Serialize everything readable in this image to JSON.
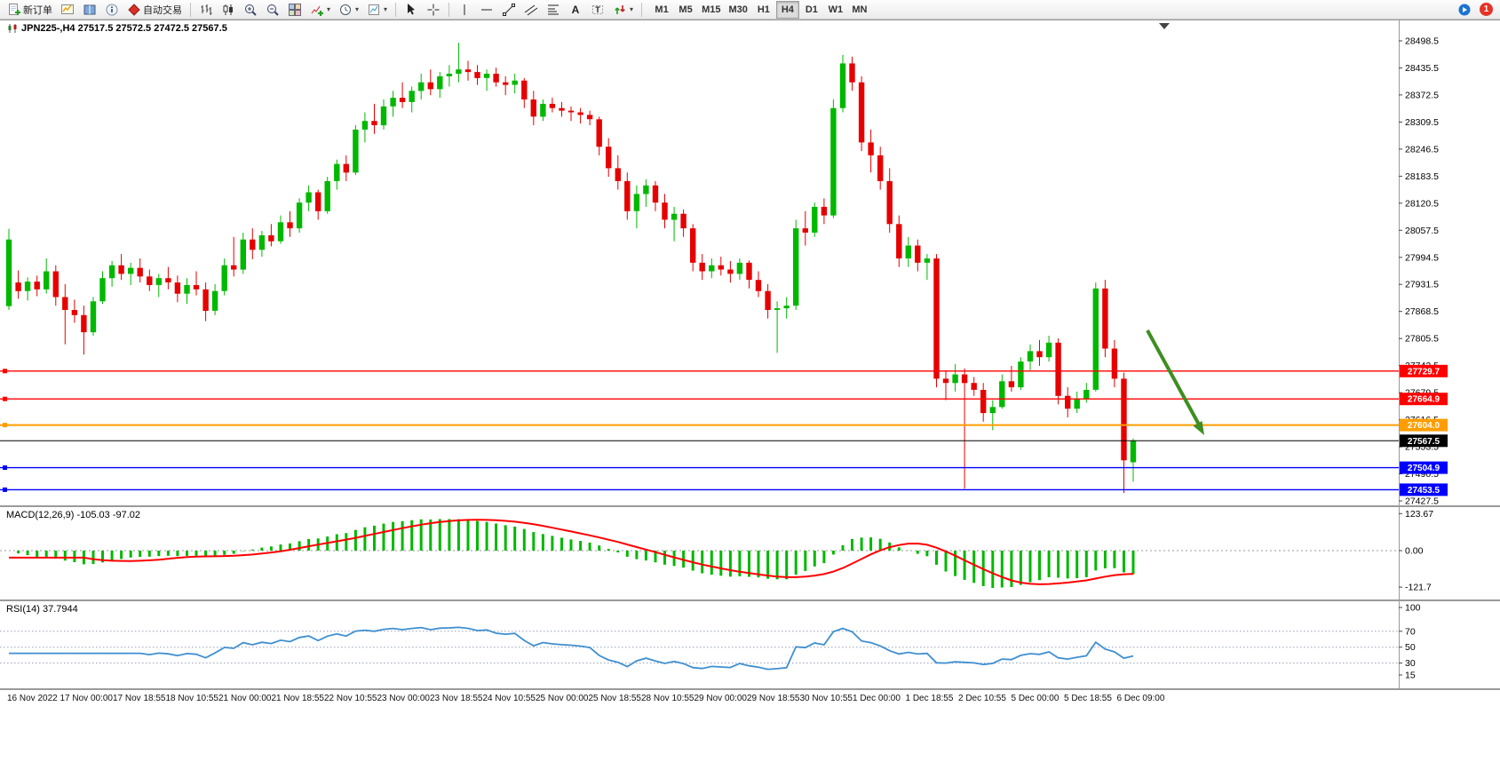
{
  "toolbar": {
    "new_order_label": "新订单",
    "auto_trading_label": "自动交易",
    "timeframes": [
      "M1",
      "M5",
      "M15",
      "M30",
      "H1",
      "H4",
      "D1",
      "W1",
      "MN"
    ],
    "active_timeframe": "H4",
    "notification_count": "1"
  },
  "chart": {
    "title": "JPN225-,H4 27517.5 27572.5 27472.5 27567.5",
    "price_axis": {
      "labels": [
        "28498.5",
        "28435.5",
        "28372.5",
        "28309.5",
        "28246.5",
        "28183.5",
        "28120.5",
        "28057.5",
        "27994.5",
        "27931.5",
        "27868.5",
        "27805.5",
        "27742.5",
        "27679.5",
        "27616.5",
        "27553.5",
        "27490.5",
        "27427.5"
      ]
    },
    "levels": [
      {
        "label": "27729.7",
        "price": 27729.7,
        "color": "#ff0000",
        "width": 1.4
      },
      {
        "label": "27664.9",
        "price": 27664.9,
        "color": "#ff0000",
        "width": 1.4
      },
      {
        "label": "27604.0",
        "price": 27604.0,
        "color": "#ff9d00",
        "width": 2
      },
      {
        "label": "27567.5",
        "price": 27567.5,
        "color": "#000000",
        "width": 1,
        "current": true
      },
      {
        "label": "27504.9",
        "price": 27504.9,
        "color": "#0000ff",
        "width": 1.4
      },
      {
        "label": "27453.5",
        "price": 27453.5,
        "color": "#0000ff",
        "width": 1.4
      }
    ],
    "colors": {
      "up": "#00b800",
      "down": "#e60000"
    },
    "arrow_color": "#3e8e22"
  },
  "macd": {
    "label": "MACD(12,26,9) -105.03 -97.02",
    "axis": [
      "123.67",
      "0.00",
      "-121.7"
    ],
    "histogram_color": "#00b800",
    "signal_color": "#ff0000"
  },
  "rsi": {
    "label": "RSI(14) 37.7944",
    "period": 14,
    "axis": [
      "100",
      "70",
      "50",
      "30",
      "15"
    ],
    "levels": [
      70,
      50,
      30
    ],
    "line_color": "#3f8fd0"
  },
  "time_axis": {
    "labels": [
      "16 Nov 2022",
      "17 Nov 00:00",
      "17 Nov 18:55",
      "18 Nov 10:55",
      "21 Nov 00:00",
      "21 Nov 18:55",
      "22 Nov 10:55",
      "23 Nov 00:00",
      "23 Nov 18:55",
      "24 Nov 10:55",
      "25 Nov 00:00",
      "25 Nov 18:55",
      "28 Nov 10:55",
      "29 Nov 00:00",
      "29 Nov 18:55",
      "30 Nov 10:55",
      "1 Dec 00:00",
      "1 Dec 18:55",
      "2 Dec 10:55",
      "5 Dec 00:00",
      "5 Dec 18:55",
      "6 Dec 09:00"
    ]
  },
  "chart_data": {
    "type": "candlestick",
    "symbol": "JPN225-",
    "timeframe": "H4",
    "ohlc_current": {
      "open": 27517.5,
      "high": 27572.5,
      "low": 27472.5,
      "close": 27567.5
    },
    "ylim": [
      27427.5,
      28498.5
    ],
    "candles": [
      [
        27881,
        28061,
        27872,
        28036
      ],
      [
        27936,
        27964,
        27898,
        27916
      ],
      [
        27916,
        27948,
        27894,
        27938
      ],
      [
        27938,
        27952,
        27904,
        27920
      ],
      [
        27920,
        27992,
        27910,
        27962
      ],
      [
        27962,
        27976,
        27882,
        27902
      ],
      [
        27902,
        27932,
        27792,
        27872
      ],
      [
        27872,
        27896,
        27842,
        27860
      ],
      [
        27860,
        27882,
        27768,
        27820
      ],
      [
        27820,
        27902,
        27812,
        27892
      ],
      [
        27892,
        27962,
        27886,
        27946
      ],
      [
        27946,
        27986,
        27926,
        27976
      ],
      [
        27976,
        28002,
        27942,
        27956
      ],
      [
        27956,
        27982,
        27930,
        27970
      ],
      [
        27970,
        27992,
        27936,
        27950
      ],
      [
        27950,
        27966,
        27916,
        27930
      ],
      [
        27930,
        27956,
        27902,
        27946
      ],
      [
        27946,
        27972,
        27920,
        27936
      ],
      [
        27936,
        27952,
        27890,
        27910
      ],
      [
        27910,
        27946,
        27886,
        27930
      ],
      [
        27930,
        27962,
        27906,
        27920
      ],
      [
        27920,
        27936,
        27846,
        27870
      ],
      [
        27870,
        27932,
        27860,
        27916
      ],
      [
        27916,
        27992,
        27906,
        27976
      ],
      [
        27976,
        28042,
        27950,
        27966
      ],
      [
        27966,
        28052,
        27956,
        28036
      ],
      [
        28036,
        28062,
        27990,
        28012
      ],
      [
        28012,
        28056,
        27996,
        28046
      ],
      [
        28046,
        28072,
        28020,
        28032
      ],
      [
        28032,
        28092,
        28026,
        28076
      ],
      [
        28076,
        28102,
        28042,
        28062
      ],
      [
        28062,
        28132,
        28052,
        28122
      ],
      [
        28122,
        28162,
        28102,
        28146
      ],
      [
        28146,
        28152,
        28082,
        28102
      ],
      [
        28102,
        28182,
        28096,
        28172
      ],
      [
        28172,
        28222,
        28152,
        28212
      ],
      [
        28212,
        28232,
        28172,
        28192
      ],
      [
        28192,
        28302,
        28186,
        28292
      ],
      [
        28292,
        28332,
        28262,
        28312
      ],
      [
        28312,
        28352,
        28282,
        28302
      ],
      [
        28302,
        28362,
        28292,
        28346
      ],
      [
        28346,
        28382,
        28322,
        28366
      ],
      [
        28366,
        28402,
        28342,
        28356
      ],
      [
        28356,
        28392,
        28332,
        28382
      ],
      [
        28382,
        28422,
        28362,
        28402
      ],
      [
        28402,
        28432,
        28372,
        28386
      ],
      [
        28386,
        28426,
        28366,
        28416
      ],
      [
        28416,
        28442,
        28392,
        28422
      ],
      [
        28422,
        28494,
        28402,
        28432
      ],
      [
        28432,
        28452,
        28406,
        28426
      ],
      [
        28426,
        28442,
        28396,
        28412
      ],
      [
        28412,
        28432,
        28382,
        28422
      ],
      [
        28422,
        28436,
        28392,
        28402
      ],
      [
        28402,
        28416,
        28372,
        28396
      ],
      [
        28396,
        28422,
        28376,
        28406
      ],
      [
        28406,
        28412,
        28342,
        28362
      ],
      [
        28362,
        28382,
        28302,
        28322
      ],
      [
        28322,
        28362,
        28312,
        28352
      ],
      [
        28352,
        28366,
        28332,
        28342
      ],
      [
        28342,
        28356,
        28322,
        28336
      ],
      [
        28336,
        28346,
        28312,
        28332
      ],
      [
        28332,
        28342,
        28306,
        28326
      ],
      [
        28326,
        28336,
        28302,
        28316
      ],
      [
        28316,
        28322,
        28232,
        28252
      ],
      [
        28252,
        28272,
        28182,
        28202
      ],
      [
        28202,
        28232,
        28152,
        28172
      ],
      [
        28172,
        28192,
        28082,
        28102
      ],
      [
        28102,
        28162,
        28062,
        28142
      ],
      [
        28142,
        28176,
        28112,
        28162
      ],
      [
        28162,
        28172,
        28102,
        28122
      ],
      [
        28122,
        28142,
        28062,
        28082
      ],
      [
        28082,
        28112,
        28032,
        28096
      ],
      [
        28096,
        28106,
        28042,
        28062
      ],
      [
        28062,
        28072,
        27962,
        27982
      ],
      [
        27982,
        28002,
        27942,
        27962
      ],
      [
        27962,
        27992,
        27946,
        27976
      ],
      [
        27976,
        27996,
        27952,
        27966
      ],
      [
        27966,
        27986,
        27936,
        27956
      ],
      [
        27956,
        27992,
        27942,
        27982
      ],
      [
        27982,
        27987,
        27922,
        27942
      ],
      [
        27942,
        27962,
        27902,
        27916
      ],
      [
        27916,
        27932,
        27852,
        27872
      ],
      [
        27872,
        27892,
        27772,
        27876
      ],
      [
        27876,
        27902,
        27852,
        27882
      ],
      [
        27882,
        28082,
        27872,
        28062
      ],
      [
        28062,
        28102,
        28022,
        28052
      ],
      [
        28052,
        28122,
        28042,
        28112
      ],
      [
        28112,
        28132,
        28072,
        28092
      ],
      [
        28092,
        28362,
        28086,
        28342
      ],
      [
        28342,
        28466,
        28332,
        28446
      ],
      [
        28446,
        28462,
        28382,
        28402
      ],
      [
        28402,
        28416,
        28242,
        28262
      ],
      [
        28262,
        28292,
        28192,
        28232
      ],
      [
        28232,
        28252,
        28152,
        28172
      ],
      [
        28172,
        28202,
        28052,
        28072
      ],
      [
        28072,
        28092,
        27972,
        27992
      ],
      [
        27992,
        28042,
        27972,
        28022
      ],
      [
        28022,
        28036,
        27962,
        27982
      ],
      [
        27982,
        28002,
        27942,
        27992
      ],
      [
        27992,
        28002,
        27692,
        27712
      ],
      [
        27712,
        27732,
        27662,
        27702
      ],
      [
        27702,
        27746,
        27682,
        27722
      ],
      [
        27722,
        27736,
        27456,
        27702
      ],
      [
        27702,
        27716,
        27672,
        27686
      ],
      [
        27686,
        27702,
        27612,
        27632
      ],
      [
        27632,
        27662,
        27592,
        27646
      ],
      [
        27646,
        27722,
        27642,
        27706
      ],
      [
        27706,
        27742,
        27682,
        27692
      ],
      [
        27692,
        27762,
        27686,
        27752
      ],
      [
        27752,
        27792,
        27732,
        27776
      ],
      [
        27776,
        27802,
        27742,
        27762
      ],
      [
        27762,
        27812,
        27752,
        27796
      ],
      [
        27796,
        27806,
        27652,
        27672
      ],
      [
        27672,
        27692,
        27622,
        27642
      ],
      [
        27642,
        27682,
        27632,
        27666
      ],
      [
        27666,
        27702,
        27656,
        27686
      ],
      [
        27686,
        27936,
        27682,
        27922
      ],
      [
        27922,
        27942,
        27762,
        27782
      ],
      [
        27782,
        27802,
        27692,
        27712
      ],
      [
        27712,
        27726,
        27446,
        27522
      ],
      [
        27517.5,
        27572.5,
        27472.5,
        27567.5
      ]
    ]
  }
}
